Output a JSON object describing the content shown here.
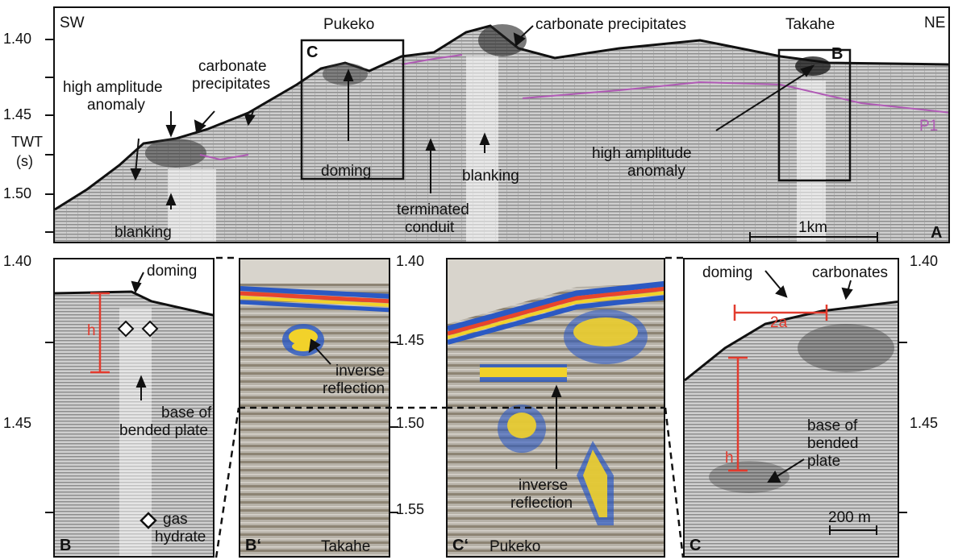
{
  "main": {
    "corner_left": "SW",
    "corner_right": "NE",
    "site_pukeko": "Pukeko",
    "site_takahe": "Takahe",
    "panel_letter": "A",
    "box_c_letter": "C",
    "box_b_letter": "B",
    "reflector_label": "P1",
    "scale_label": "1km",
    "y_axis_label_line1": "TWT",
    "y_axis_label_line2": "(s)",
    "y_ticks": [
      "1.40",
      "1.45",
      "1.50"
    ],
    "annotations": {
      "high_amp_left_1": "high amplitude",
      "high_amp_left_2": "anomaly",
      "carb_left_1": "carbonate",
      "carb_left_2": "precipitates",
      "blanking_left": "blanking",
      "doming": "doming",
      "terminated_1": "terminated",
      "terminated_2": "conduit",
      "blanking_mid": "blanking",
      "carb_top": "carbonate precipitates",
      "high_amp_right_1": "high amplitude",
      "high_amp_right_2": "anomaly"
    }
  },
  "panel_b": {
    "letter": "B",
    "y_ticks": [
      "1.40",
      "1.45"
    ],
    "doming": "doming",
    "h_label": "h",
    "base_1": "base of",
    "base_2": "bended plate",
    "legend_1": "gas",
    "legend_2": "hydrate"
  },
  "panel_b_prime": {
    "letter": "B‘",
    "name": "Takahe",
    "ann_1": "inverse",
    "ann_2": "reflection"
  },
  "panel_c_prime": {
    "letter": "C‘",
    "name": "Pukeko",
    "y_ticks": [
      "1.40",
      "1.45",
      "1.50",
      "1.55"
    ],
    "ann_1": "inverse",
    "ann_2": "reflection"
  },
  "panel_c": {
    "letter": "C",
    "y_ticks": [
      "1.40",
      "1.45"
    ],
    "doming": "doming",
    "carbonates": "carbonates",
    "twoa_label": "2a",
    "h_label": "h",
    "base_1": "base of",
    "base_2": "bended",
    "base_3": "plate",
    "scale_label": "200 m"
  },
  "colors": {
    "seismic_bg": "#c9c9c9",
    "red_annotation": "#e23b2e",
    "reflector_purple": "#b05ab5",
    "seafloor_blue": "#2b59c3",
    "seafloor_red": "#e8452c",
    "seafloor_yellow": "#f2d22a"
  }
}
